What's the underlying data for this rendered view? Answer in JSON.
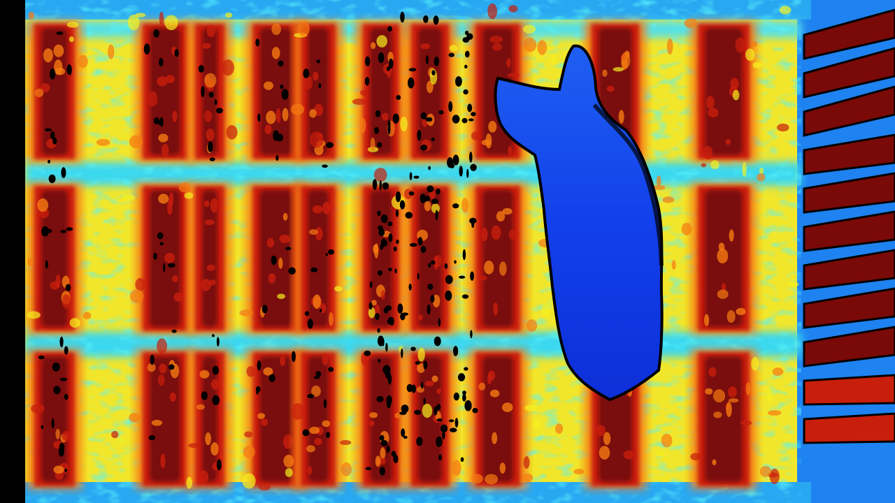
{
  "image": {
    "kind": "depth-map-colorized",
    "colormap": "jet",
    "subject": "bookshelf-with-person-silhouette",
    "palette": {
      "near": "#0a3ff2",
      "mid_low": "#19c3f5",
      "mid": "#f5f01e",
      "mid_high": "#f57a12",
      "far": "#c81e0c",
      "very_far": "#7a0a08",
      "hole": "#000000"
    }
  }
}
